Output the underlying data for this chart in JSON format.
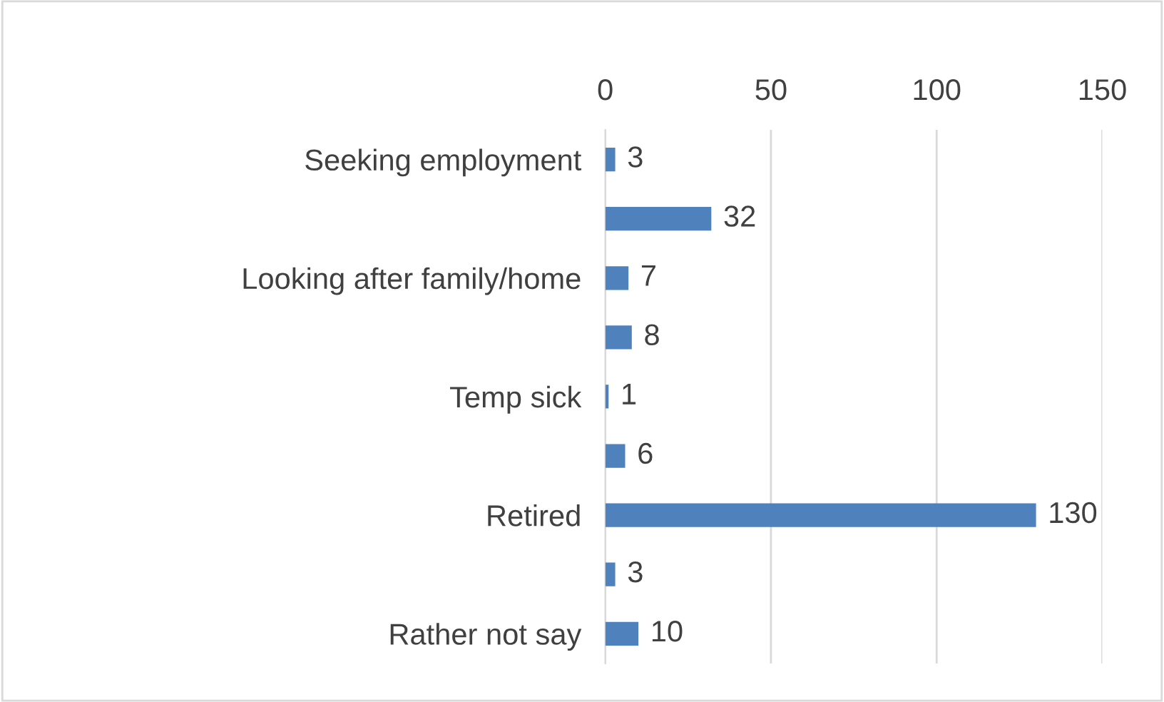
{
  "chart_data": {
    "type": "bar",
    "orientation": "horizontal",
    "categories": [
      "Seeking employment",
      null,
      "Looking after family/home",
      null,
      "Temp sick",
      null,
      "Retired",
      null,
      "Rather not say"
    ],
    "values": [
      3,
      32,
      7,
      8,
      1,
      6,
      130,
      3,
      10
    ],
    "color": "#4f81bd",
    "xlim": [
      0,
      150
    ],
    "xticks": [
      0,
      50,
      100,
      150
    ],
    "grid": "x",
    "data_labels": true
  }
}
